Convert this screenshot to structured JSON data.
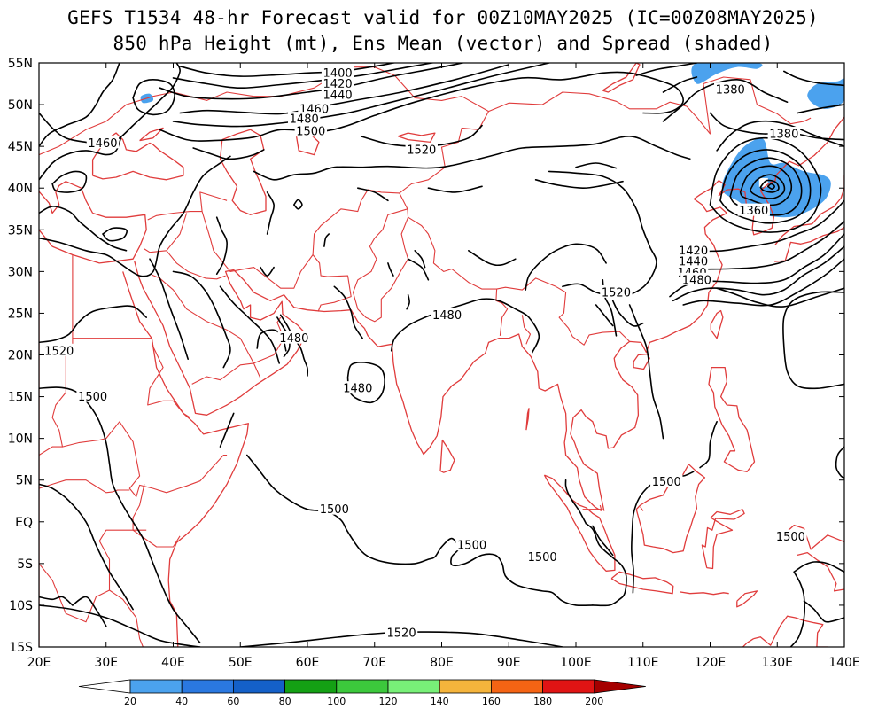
{
  "title": {
    "line1": "GEFS T1534 48-hr Forecast valid for 00Z10MAY2025 (IC=00Z08MAY2025)",
    "line2": "850 hPa Height (mt), Ens Mean (vector) and Spread (shaded)"
  },
  "map": {
    "lon_range": [
      20,
      140
    ],
    "lat_range": [
      -15,
      55
    ],
    "lon_ticks": [
      "20E",
      "30E",
      "40E",
      "50E",
      "60E",
      "70E",
      "80E",
      "90E",
      "100E",
      "110E",
      "120E",
      "130E",
      "140E"
    ],
    "lat_ticks": [
      "55N",
      "50N",
      "45N",
      "40N",
      "35N",
      "30N",
      "25N",
      "20N",
      "15N",
      "10N",
      "5N",
      "EQ",
      "5S",
      "10S",
      "15S"
    ],
    "coastline_color": "#e03c3c",
    "contour_color": "#000000",
    "contour_labels": [
      {
        "text": "1400",
        "lon": 64.5,
        "lat": 53.8
      },
      {
        "text": "1420",
        "lon": 64.5,
        "lat": 52.5
      },
      {
        "text": "1440",
        "lon": 64.5,
        "lat": 51.2
      },
      {
        "text": "1460",
        "lon": 61.0,
        "lat": 49.5
      },
      {
        "text": "1480",
        "lon": 59.5,
        "lat": 48.3
      },
      {
        "text": "1500",
        "lon": 60.5,
        "lat": 46.8
      },
      {
        "text": "1520",
        "lon": 77.0,
        "lat": 44.6
      },
      {
        "text": "1460",
        "lon": 29.5,
        "lat": 45.4
      },
      {
        "text": "1380",
        "lon": 123.0,
        "lat": 51.8
      },
      {
        "text": "1380",
        "lon": 131.0,
        "lat": 46.5
      },
      {
        "text": "1360",
        "lon": 126.5,
        "lat": 37.3
      },
      {
        "text": "1420",
        "lon": 117.5,
        "lat": 32.5
      },
      {
        "text": "1440",
        "lon": 117.5,
        "lat": 31.2
      },
      {
        "text": "1460",
        "lon": 117.3,
        "lat": 29.9
      },
      {
        "text": "1480",
        "lon": 118.0,
        "lat": 29.0
      },
      {
        "text": "1520",
        "lon": 106.0,
        "lat": 27.5
      },
      {
        "text": "1480",
        "lon": 80.8,
        "lat": 24.8
      },
      {
        "text": "1480",
        "lon": 58.0,
        "lat": 22.0
      },
      {
        "text": "1480",
        "lon": 67.5,
        "lat": 16.0
      },
      {
        "text": "1520",
        "lon": 23.0,
        "lat": 20.5
      },
      {
        "text": "1500",
        "lon": 28.0,
        "lat": 15.0
      },
      {
        "text": "1500",
        "lon": 113.5,
        "lat": 4.8
      },
      {
        "text": "1500",
        "lon": 64.0,
        "lat": 1.5
      },
      {
        "text": "1500",
        "lon": 84.5,
        "lat": -2.8
      },
      {
        "text": "1500",
        "lon": 95.0,
        "lat": -4.2
      },
      {
        "text": "1500",
        "lon": 132.0,
        "lat": -1.8
      },
      {
        "text": "1520",
        "lon": 74.0,
        "lat": -13.3
      }
    ],
    "spread_shading": [
      {
        "name": "mid-latitude trough",
        "color": "#4ba2ee",
        "points": [
          [
            122,
            41
          ],
          [
            124,
            44
          ],
          [
            126,
            45.5
          ],
          [
            128,
            45.8
          ],
          [
            129,
            43
          ],
          [
            131,
            43
          ],
          [
            134,
            42
          ],
          [
            137,
            41.5
          ],
          [
            138,
            40.5
          ],
          [
            137,
            38.5
          ],
          [
            134,
            37
          ],
          [
            131,
            36.5
          ],
          [
            127,
            37
          ],
          [
            124,
            38.5
          ],
          [
            122,
            39.5
          ]
        ]
      },
      {
        "name": "north-east patch",
        "color": "#4ba2ee",
        "points": [
          [
            118,
            52.5
          ],
          [
            121,
            53.7
          ],
          [
            124,
            54.5
          ],
          [
            127,
            54.3
          ],
          [
            127,
            55
          ],
          [
            118,
            55
          ]
        ]
      },
      {
        "name": "far north-east patch",
        "color": "#4ba2ee",
        "points": [
          [
            134.5,
            51.2
          ],
          [
            136,
            52.5
          ],
          [
            139,
            52.8
          ],
          [
            140,
            53
          ],
          [
            140,
            50.5
          ],
          [
            137.5,
            49.5
          ],
          [
            135.5,
            50
          ]
        ]
      },
      {
        "name": "small north-west patch",
        "color": "#4ba2ee",
        "points": [
          [
            35.2,
            51
          ],
          [
            36.5,
            51.3
          ],
          [
            37,
            50.5
          ],
          [
            35.5,
            50.2
          ]
        ]
      }
    ]
  },
  "colorbar": {
    "labels": [
      "20",
      "40",
      "60",
      "80",
      "100",
      "120",
      "140",
      "160",
      "180",
      "200"
    ],
    "colors": [
      "#ffffff",
      "#4ba2ee",
      "#2a78e0",
      "#1460c8",
      "#14a014",
      "#3cc83c",
      "#78f078",
      "#f5b43c",
      "#f56414",
      "#e01414",
      "#a50000"
    ]
  }
}
